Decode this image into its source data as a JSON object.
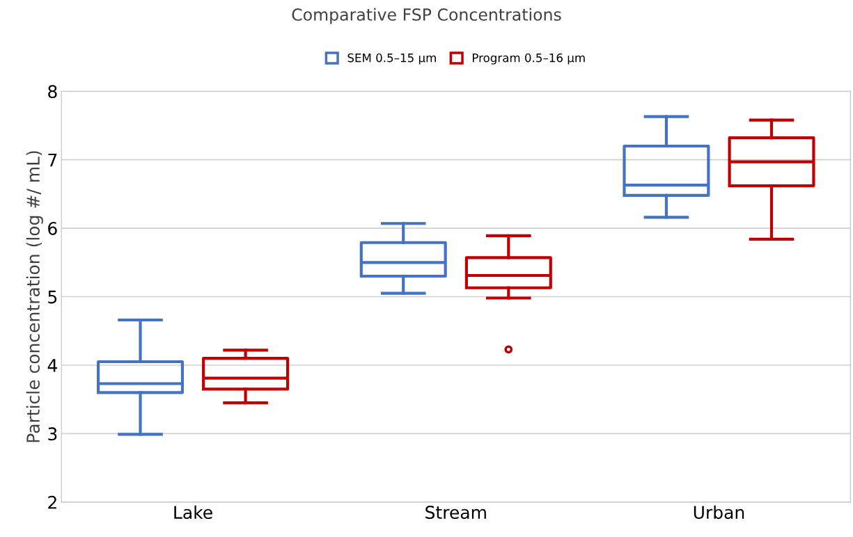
{
  "chart_data": {
    "type": "box",
    "title": "Comparative FSP Concentrations",
    "ylabel": "Particle concentration (log #/ mL)",
    "categories": [
      "Lake",
      "Stream",
      "Urban"
    ],
    "ylim": [
      2,
      8
    ],
    "yticks": [
      2,
      3,
      4,
      5,
      6,
      7,
      8
    ],
    "grid": "y",
    "legend": "top",
    "series": [
      {
        "name": "SEM 0.5–15 µm",
        "color": "#4472c4",
        "boxes": [
          {
            "low": 2.99,
            "q1": 3.6,
            "median": 3.73,
            "q3": 4.05,
            "high": 4.66
          },
          {
            "low": 5.05,
            "q1": 5.3,
            "median": 5.5,
            "q3": 5.79,
            "high": 6.07
          },
          {
            "low": 6.16,
            "q1": 6.48,
            "median": 6.63,
            "q3": 7.2,
            "high": 7.63
          }
        ]
      },
      {
        "name": "Program 0.5–16 µm",
        "color": "#c00000",
        "boxes": [
          {
            "low": 3.45,
            "q1": 3.65,
            "median": 3.81,
            "q3": 4.1,
            "high": 4.22
          },
          {
            "low": 4.98,
            "q1": 5.13,
            "median": 5.31,
            "q3": 5.57,
            "high": 5.89,
            "outliers": [
              4.23
            ]
          },
          {
            "low": 5.84,
            "q1": 6.62,
            "median": 6.97,
            "q3": 7.32,
            "high": 7.58
          }
        ]
      }
    ]
  }
}
